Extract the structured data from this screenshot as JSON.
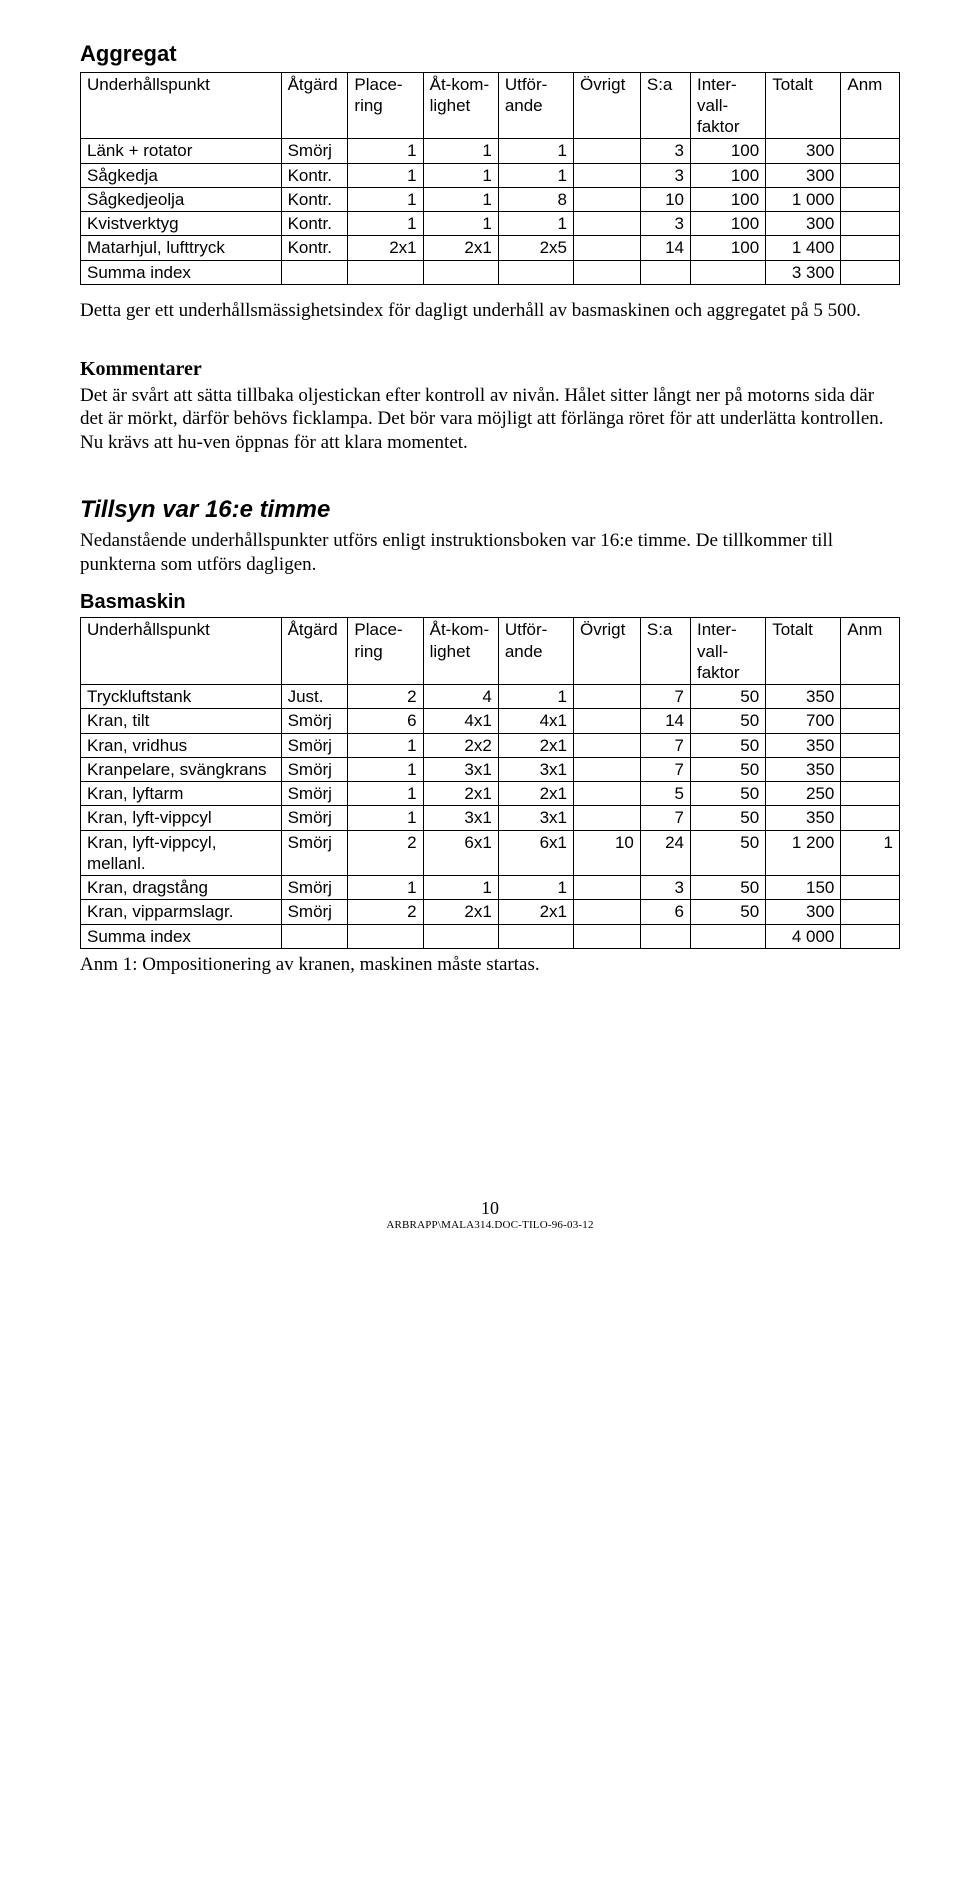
{
  "headings": {
    "aggregat": "Aggregat",
    "kommentarer": "Kommentarer",
    "tillsyn": "Tillsyn var 16:e timme",
    "basmaskin": "Basmaskin"
  },
  "table_headers": {
    "underhallspunkt": "Underhållspunkt",
    "atgard": "Åtgärd",
    "placering": "Place-ring",
    "atkomlighet": "Åt-kom-lighet",
    "utforande": "Utför-ande",
    "ovrigt": "Övrigt",
    "sa": "S:a",
    "intervallfaktor": "Inter-vall-faktor",
    "totalt": "Totalt",
    "anm": "Anm"
  },
  "aggregat_rows": [
    {
      "up": "Länk + rotator",
      "at": "Smörj",
      "pl": "1",
      "ak": "1",
      "ut": "1",
      "ov": "",
      "sa": "3",
      "iv": "100",
      "to": "300",
      "an": ""
    },
    {
      "up": "Sågkedja",
      "at": "Kontr.",
      "pl": "1",
      "ak": "1",
      "ut": "1",
      "ov": "",
      "sa": "3",
      "iv": "100",
      "to": "300",
      "an": ""
    },
    {
      "up": "Sågkedjeolja",
      "at": "Kontr.",
      "pl": "1",
      "ak": "1",
      "ut": "8",
      "ov": "",
      "sa": "10",
      "iv": "100",
      "to": "1 000",
      "an": ""
    },
    {
      "up": "Kvistverktyg",
      "at": "Kontr.",
      "pl": "1",
      "ak": "1",
      "ut": "1",
      "ov": "",
      "sa": "3",
      "iv": "100",
      "to": "300",
      "an": ""
    },
    {
      "up": "Matarhjul, lufttryck",
      "at": "Kontr.",
      "pl": "2x1",
      "ak": "2x1",
      "ut": "2x5",
      "ov": "",
      "sa": "14",
      "iv": "100",
      "to": "1 400",
      "an": ""
    }
  ],
  "aggregat_sum": {
    "label": "Summa index",
    "value": "3 300"
  },
  "para_after_aggregat": "Detta ger ett underhållsmässighetsindex för dagligt underhåll av basmaskinen och aggregatet på 5 500.",
  "kommentarer_text": "Det är svårt att sätta tillbaka oljestickan efter kontroll av nivån. Hålet sitter långt ner på motorns sida där det är mörkt, därför behövs ficklampa. Det bör vara möjligt att förlänga röret för att underlätta kontrollen. Nu krävs att hu-ven öppnas för att klara momentet.",
  "tillsyn_text": "Nedanstående underhållspunkter utförs enligt instruktionsboken var 16:e timme. De tillkommer till punkterna som utförs dagligen.",
  "basmaskin_rows": [
    {
      "up": "Tryckluftstank",
      "at": "Just.",
      "pl": "2",
      "ak": "4",
      "ut": "1",
      "ov": "",
      "sa": "7",
      "iv": "50",
      "to": "350",
      "an": ""
    },
    {
      "up": "Kran, tilt",
      "at": "Smörj",
      "pl": "6",
      "ak": "4x1",
      "ut": "4x1",
      "ov": "",
      "sa": "14",
      "iv": "50",
      "to": "700",
      "an": ""
    },
    {
      "up": "Kran, vridhus",
      "at": "Smörj",
      "pl": "1",
      "ak": "2x2",
      "ut": "2x1",
      "ov": "",
      "sa": "7",
      "iv": "50",
      "to": "350",
      "an": ""
    },
    {
      "up": "Kranpelare, svängkrans",
      "at": "Smörj",
      "pl": "1",
      "ak": "3x1",
      "ut": "3x1",
      "ov": "",
      "sa": "7",
      "iv": "50",
      "to": "350",
      "an": ""
    },
    {
      "up": "Kran, lyftarm",
      "at": "Smörj",
      "pl": "1",
      "ak": "2x1",
      "ut": "2x1",
      "ov": "",
      "sa": "5",
      "iv": "50",
      "to": "250",
      "an": ""
    },
    {
      "up": "Kran, lyft-vippcyl",
      "at": "Smörj",
      "pl": "1",
      "ak": "3x1",
      "ut": "3x1",
      "ov": "",
      "sa": "7",
      "iv": "50",
      "to": "350",
      "an": ""
    },
    {
      "up": "Kran, lyft-vippcyl, mellanl.",
      "at": "Smörj",
      "pl": "2",
      "ak": "6x1",
      "ut": "6x1",
      "ov": "10",
      "sa": "24",
      "iv": "50",
      "to": "1 200",
      "an": "1"
    },
    {
      "up": "Kran, dragstång",
      "at": "Smörj",
      "pl": "1",
      "ak": "1",
      "ut": "1",
      "ov": "",
      "sa": "3",
      "iv": "50",
      "to": "150",
      "an": ""
    },
    {
      "up": "Kran, vipparmslagr.",
      "at": "Smörj",
      "pl": "2",
      "ak": "2x1",
      "ut": "2x1",
      "ov": "",
      "sa": "6",
      "iv": "50",
      "to": "300",
      "an": ""
    }
  ],
  "basmaskin_sum": {
    "label": "Summa index",
    "value": "4 000"
  },
  "anm_note": "Anm 1: Ompositionering av kranen, maskinen måste startas.",
  "footer": {
    "page": "10",
    "filename": "ARBRAPP\\MALA314.DOC-TILO-96-03-12"
  }
}
